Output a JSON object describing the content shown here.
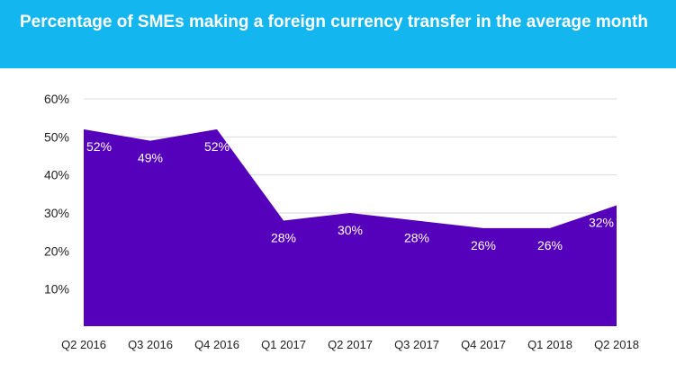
{
  "colors": {
    "header": "#14b6f0",
    "area": "#5500bb",
    "grid": "#d9d9d9"
  },
  "chart_data": {
    "type": "area",
    "title": "Percentage of SMEs making a foreign currency transfer in the average month",
    "xlabel": "",
    "ylabel": "",
    "categories": [
      "Q2 2016",
      "Q3 2016",
      "Q4 2016",
      "Q1 2017",
      "Q2 2017",
      "Q3 2017",
      "Q4 2017",
      "Q1 2018",
      "Q2 2018"
    ],
    "values": [
      52,
      49,
      52,
      28,
      30,
      28,
      26,
      26,
      32
    ],
    "data_labels": [
      "52%",
      "49%",
      "52%",
      "28%",
      "30%",
      "28%",
      "26%",
      "26%",
      "32%"
    ],
    "ylim": [
      0,
      60
    ],
    "yticks": [
      {
        "value": 10,
        "label": "10%"
      },
      {
        "value": 20,
        "label": "20%"
      },
      {
        "value": 30,
        "label": "30%"
      },
      {
        "value": 40,
        "label": "40%"
      },
      {
        "value": 50,
        "label": "50%"
      },
      {
        "value": 60,
        "label": "60%"
      }
    ],
    "grid": true,
    "legend": "none"
  }
}
